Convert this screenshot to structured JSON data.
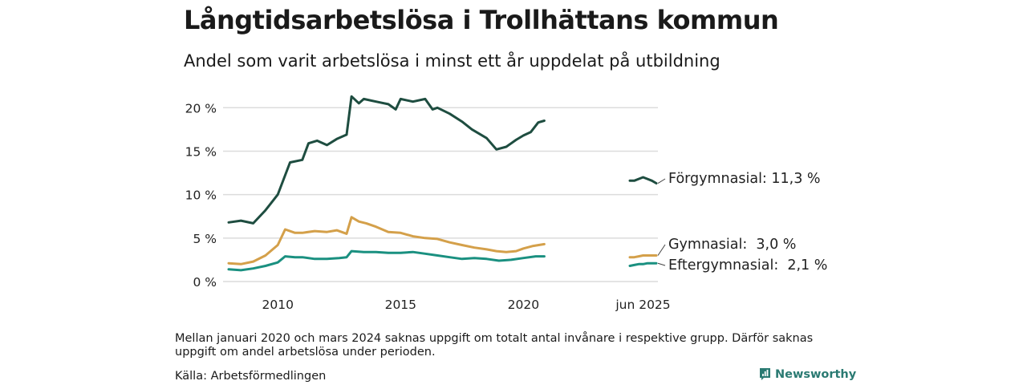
{
  "header": {
    "title": "Långtidsarbetslösa i Trollhättans kommun",
    "subtitle": "Andel som varit arbetslösa i minst ett år uppdelat på utbildning"
  },
  "footer": {
    "note": "Mellan januari 2020 och mars 2024 saknas uppgift om totalt antal invånare i respektive grupp. Därför saknas uppgift om andel arbetslösa under perioden.",
    "source": "Källa: Arbetsförmedlingen",
    "brand": "Newsworthy"
  },
  "colors": {
    "forgymnasial": "#1e4d40",
    "gymnasial": "#d4a04a",
    "eftergymnasial": "#1a9080",
    "grid": "#dcdcdc"
  },
  "chart_data": {
    "type": "line",
    "y_ticks": [
      0,
      5,
      10,
      15,
      20
    ],
    "y_tick_labels": [
      "0 %",
      "5 %",
      "10 %",
      "15 %",
      "20 %"
    ],
    "ylim": [
      0,
      21.5
    ],
    "x_ticks": [
      2010,
      2015,
      2020
    ],
    "x_tick_labels": [
      "2010",
      "2015",
      "2020"
    ],
    "xlim": [
      2008.0,
      2021.0
    ],
    "recent_tick_label": "jun 2025",
    "grid": true,
    "series": [
      {
        "name": "Förgymnasial",
        "end_label": "Förgymnasial: 11,3 %",
        "color_key": "forgymnasial",
        "points": [
          [
            2008.0,
            6.8
          ],
          [
            2008.5,
            7.0
          ],
          [
            2009.0,
            6.7
          ],
          [
            2009.5,
            8.2
          ],
          [
            2010.0,
            10.0
          ],
          [
            2010.5,
            13.7
          ],
          [
            2011.0,
            14.0
          ],
          [
            2011.25,
            15.9
          ],
          [
            2011.6,
            16.2
          ],
          [
            2012.0,
            15.7
          ],
          [
            2012.4,
            16.4
          ],
          [
            2012.8,
            16.9
          ],
          [
            2013.0,
            21.3
          ],
          [
            2013.3,
            20.5
          ],
          [
            2013.5,
            21.0
          ],
          [
            2014.0,
            20.7
          ],
          [
            2014.5,
            20.4
          ],
          [
            2014.8,
            19.8
          ],
          [
            2015.0,
            21.0
          ],
          [
            2015.5,
            20.7
          ],
          [
            2016.0,
            21.0
          ],
          [
            2016.3,
            19.8
          ],
          [
            2016.5,
            20.0
          ],
          [
            2017.0,
            19.3
          ],
          [
            2017.5,
            18.4
          ],
          [
            2017.9,
            17.5
          ],
          [
            2018.5,
            16.5
          ],
          [
            2018.9,
            15.2
          ],
          [
            2019.3,
            15.5
          ],
          [
            2019.7,
            16.3
          ],
          [
            2020.0,
            16.8
          ],
          [
            2020.3,
            17.2
          ],
          [
            2020.6,
            18.3
          ],
          [
            2020.85,
            18.5
          ]
        ],
        "recent": [
          11.6,
          11.6,
          11.8,
          12.0,
          11.8,
          11.6,
          11.3
        ],
        "recent_end": 11.3
      },
      {
        "name": "Gymnasial",
        "end_label": "Gymnasial:  3,0 %",
        "color_key": "gymnasial",
        "points": [
          [
            2008.0,
            2.1
          ],
          [
            2008.5,
            2.0
          ],
          [
            2009.0,
            2.3
          ],
          [
            2009.5,
            3.0
          ],
          [
            2010.0,
            4.2
          ],
          [
            2010.3,
            6.0
          ],
          [
            2010.7,
            5.6
          ],
          [
            2011.0,
            5.6
          ],
          [
            2011.5,
            5.8
          ],
          [
            2012.0,
            5.7
          ],
          [
            2012.4,
            5.9
          ],
          [
            2012.8,
            5.5
          ],
          [
            2013.0,
            7.4
          ],
          [
            2013.3,
            6.9
          ],
          [
            2013.6,
            6.7
          ],
          [
            2014.0,
            6.3
          ],
          [
            2014.5,
            5.7
          ],
          [
            2015.0,
            5.6
          ],
          [
            2015.5,
            5.2
          ],
          [
            2016.0,
            5.0
          ],
          [
            2016.5,
            4.9
          ],
          [
            2017.0,
            4.5
          ],
          [
            2017.5,
            4.2
          ],
          [
            2018.0,
            3.9
          ],
          [
            2018.5,
            3.7
          ],
          [
            2018.9,
            3.5
          ],
          [
            2019.3,
            3.4
          ],
          [
            2019.7,
            3.5
          ],
          [
            2020.0,
            3.8
          ],
          [
            2020.4,
            4.1
          ],
          [
            2020.85,
            4.3
          ]
        ],
        "recent": [
          2.8,
          2.8,
          2.9,
          3.0,
          3.0,
          3.0,
          3.0
        ],
        "recent_end": 3.0
      },
      {
        "name": "Eftergymnasial",
        "end_label": "Eftergymnasial:  2,1 %",
        "color_key": "eftergymnasial",
        "points": [
          [
            2008.0,
            1.4
          ],
          [
            2008.5,
            1.3
          ],
          [
            2009.0,
            1.5
          ],
          [
            2009.5,
            1.8
          ],
          [
            2010.0,
            2.2
          ],
          [
            2010.3,
            2.9
          ],
          [
            2010.7,
            2.8
          ],
          [
            2011.0,
            2.8
          ],
          [
            2011.5,
            2.6
          ],
          [
            2012.0,
            2.6
          ],
          [
            2012.5,
            2.7
          ],
          [
            2012.8,
            2.8
          ],
          [
            2013.0,
            3.5
          ],
          [
            2013.5,
            3.4
          ],
          [
            2014.0,
            3.4
          ],
          [
            2014.5,
            3.3
          ],
          [
            2015.0,
            3.3
          ],
          [
            2015.5,
            3.4
          ],
          [
            2016.0,
            3.2
          ],
          [
            2016.5,
            3.0
          ],
          [
            2017.0,
            2.8
          ],
          [
            2017.5,
            2.6
          ],
          [
            2018.0,
            2.7
          ],
          [
            2018.5,
            2.6
          ],
          [
            2019.0,
            2.4
          ],
          [
            2019.5,
            2.5
          ],
          [
            2020.0,
            2.7
          ],
          [
            2020.5,
            2.9
          ],
          [
            2020.85,
            2.9
          ]
        ],
        "recent": [
          1.8,
          1.9,
          2.0,
          2.0,
          2.1,
          2.1,
          2.1
        ],
        "recent_end": 2.1
      }
    ]
  }
}
